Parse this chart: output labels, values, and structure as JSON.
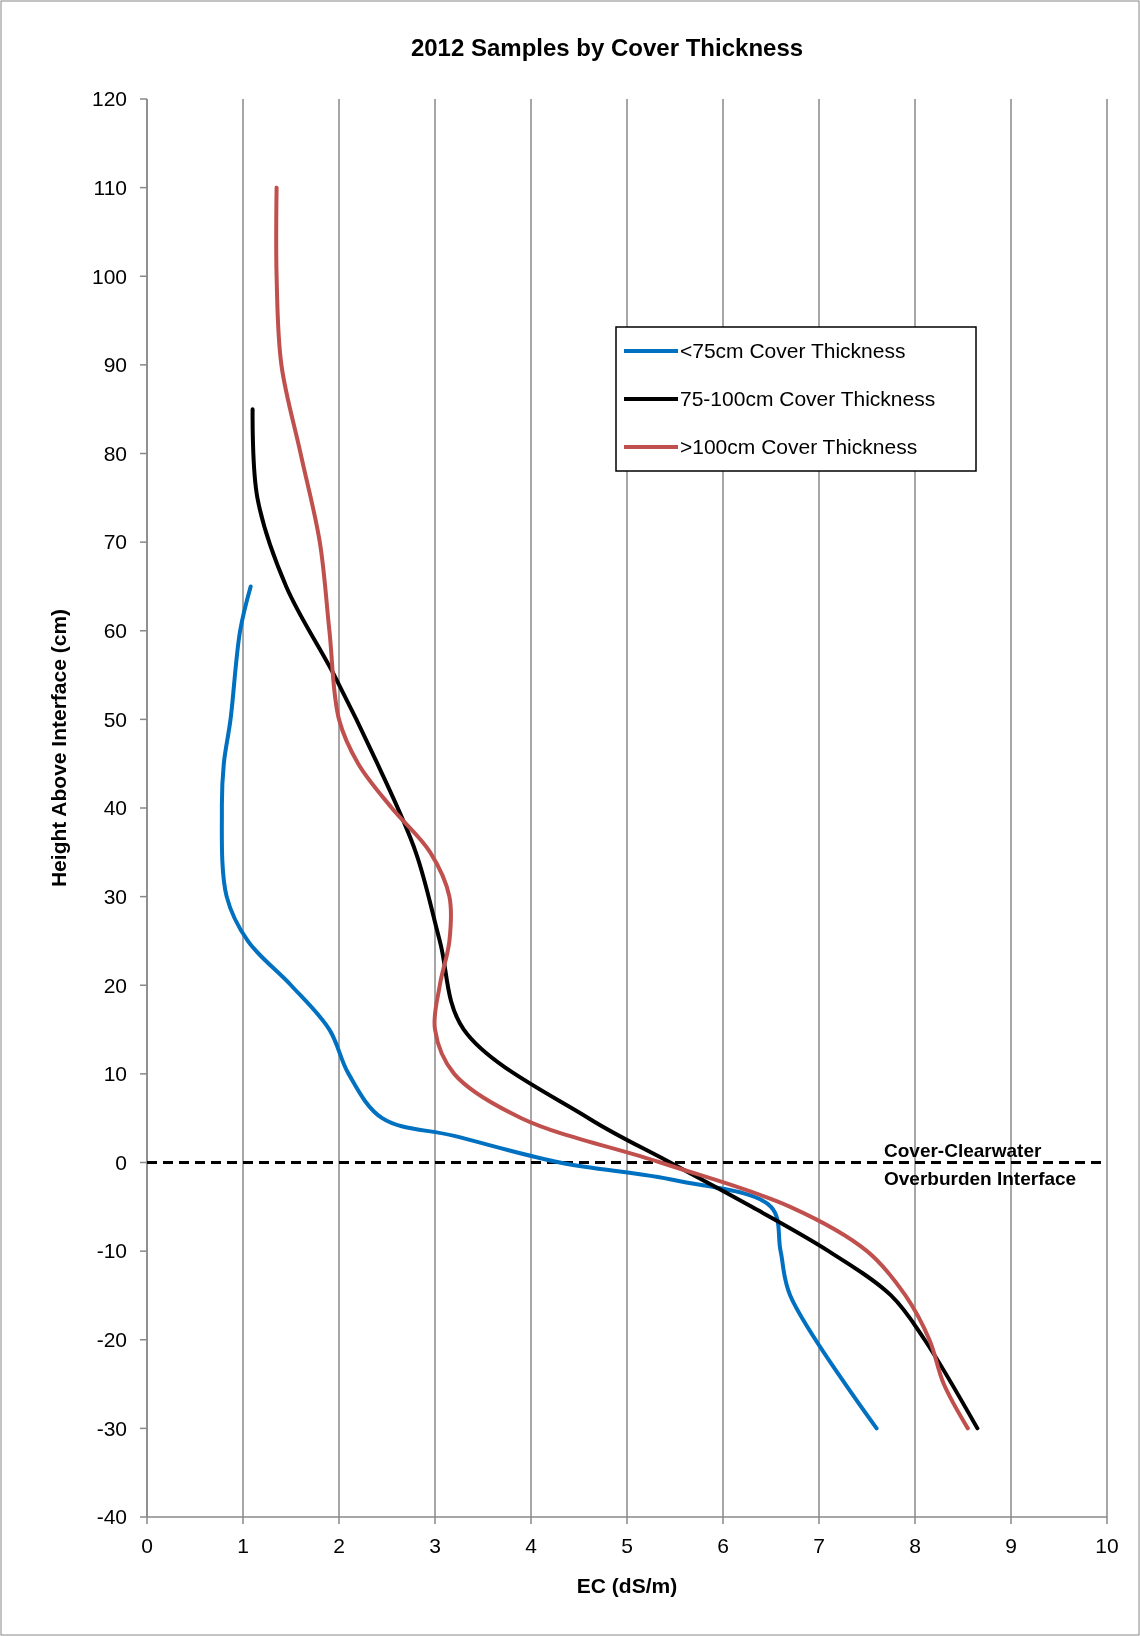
{
  "chart_data": {
    "type": "line",
    "title": "2012 Samples by Cover Thickness",
    "xlabel": "EC (dS/m)",
    "ylabel": "Height Above Interface (cm)",
    "xlim": [
      0,
      10
    ],
    "xticks": [
      0,
      1,
      2,
      3,
      4,
      5,
      6,
      7,
      8,
      9,
      10
    ],
    "ylim": [
      -40,
      120
    ],
    "yticks": [
      -40,
      -30,
      -20,
      -10,
      0,
      10,
      20,
      30,
      40,
      50,
      60,
      70,
      80,
      90,
      100,
      110,
      120
    ],
    "grid": "x",
    "legend": "top right",
    "marker": "none",
    "line_style": "solid",
    "series": [
      {
        "name": "<75cm Cover Thickness",
        "color": "#0070c0",
        "x": [
          1.08,
          0.97,
          0.87,
          0.8,
          0.78,
          0.83,
          1.05,
          1.5,
          1.9,
          2.1,
          2.45,
          3.2,
          4.3,
          5.5,
          6.5,
          6.6,
          6.7,
          7.6
        ],
        "values": [
          65,
          60,
          50,
          45,
          40,
          30,
          25,
          20,
          15,
          10,
          5,
          3,
          0,
          -2,
          -5,
          -10,
          -15,
          -30
        ]
      },
      {
        "name": "75-100cm Cover Thickness",
        "color": "#000000",
        "x": [
          1.1,
          1.15,
          1.45,
          1.95,
          2.4,
          2.8,
          3.05,
          3.3,
          4.6,
          5.45,
          6.3,
          7.1,
          7.75,
          8.1,
          8.65
        ],
        "values": [
          85,
          75,
          65,
          55,
          45,
          35,
          25,
          15,
          5,
          0,
          -5,
          -10,
          -15,
          -20,
          -30
        ]
      },
      {
        "name": ">100cm Cover Thickness",
        "color": "#c0504d",
        "x": [
          1.35,
          1.35,
          1.4,
          1.6,
          1.8,
          1.9,
          2.0,
          2.2,
          2.55,
          2.95,
          3.15,
          3.15,
          3.05,
          3.0,
          3.2,
          3.9,
          5.35,
          6.7,
          7.5,
          7.9,
          8.15,
          8.3,
          8.55
        ],
        "values": [
          110,
          100,
          90,
          80,
          70,
          60,
          50,
          45,
          40,
          35,
          30,
          25,
          20,
          15,
          10,
          5,
          0,
          -5,
          -10,
          -15,
          -20,
          -25,
          -30
        ]
      }
    ],
    "ref_lines": [
      {
        "axis": "y",
        "value": 0,
        "label": "Cover-Clearwater\nOverburden Interface",
        "color": "#000000",
        "line_style": "dashed"
      }
    ]
  }
}
